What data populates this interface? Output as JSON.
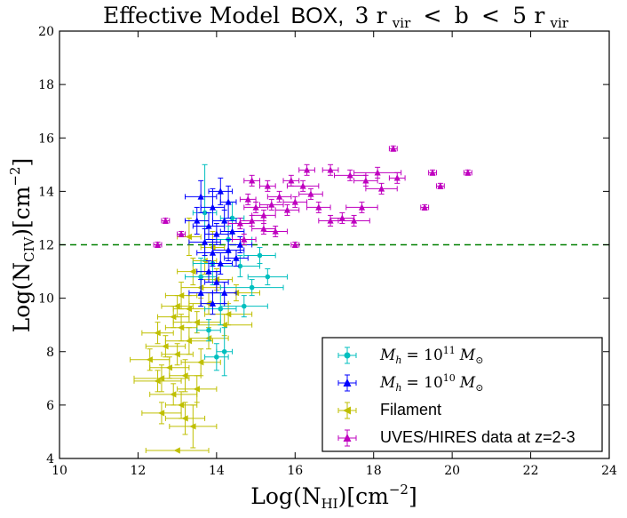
{
  "chart_data": {
    "type": "scatter",
    "title": {
      "prefix": "Effective Model",
      "highlight": "BOX,",
      "condition": "3 r_vir < b < 5 r_vir",
      "num1": "3",
      "r1": "r",
      "sub1": "vir",
      "lt1": "<",
      "b": "b",
      "lt2": "<",
      "num2": "5",
      "r2": "r",
      "sub2": "vir"
    },
    "xlabel": {
      "main": "Log(N",
      "sub": "HI",
      "tail": ")[cm",
      "sup": "−2",
      "close": "]"
    },
    "ylabel": {
      "main": "Log(N",
      "sub": "CIV",
      "tail": ")[cm",
      "sup": "−2",
      "close": "]"
    },
    "xlim": [
      10,
      24
    ],
    "ylim": [
      4,
      20
    ],
    "xticks": [
      10,
      12,
      14,
      16,
      18,
      20,
      22,
      24
    ],
    "yticks": [
      4,
      6,
      8,
      10,
      12,
      14,
      16,
      18,
      20
    ],
    "threshold": 12,
    "colors": {
      "cyan": "#00bfbf",
      "blue": "#0000ff",
      "olive": "#bfbf00",
      "magenta": "#bf00bf",
      "threshold": "#008000"
    },
    "legend": {
      "position": "lower-right",
      "entries": [
        {
          "key": "cyan",
          "label": "M_h = 10^11 M_sun",
          "l_var": "M",
          "l_sub": "h",
          "l_eq": "= 10",
          "l_sup": "11",
          "l_m": "M",
          "l_sun": "⊙"
        },
        {
          "key": "blue",
          "label": "M_h = 10^10 M_sun",
          "l_var": "M",
          "l_sub": "h",
          "l_eq": "= 10",
          "l_sup": "10",
          "l_m": "M",
          "l_sun": "⊙"
        },
        {
          "key": "olive",
          "label": "Filament"
        },
        {
          "key": "magenta",
          "label": "UVES/HIRES data at z=2-3"
        }
      ]
    },
    "series": [
      {
        "name": "M_h = 10^11 M_sun",
        "key": "cyan",
        "marker": "dot",
        "points": [
          {
            "x": 13.7,
            "y": 13.2,
            "ex": 0.3,
            "ey": 1.8
          },
          {
            "x": 13.9,
            "y": 11.3,
            "ex": 0.5,
            "ey": 0.8
          },
          {
            "x": 14.1,
            "y": 9.6,
            "ex": 0.4,
            "ey": 0.6
          },
          {
            "x": 13.8,
            "y": 8.8,
            "ex": 0.3,
            "ey": 0.4
          },
          {
            "x": 14.3,
            "y": 12.2,
            "ex": 0.6,
            "ey": 0.5
          },
          {
            "x": 14.6,
            "y": 11.2,
            "ex": 0.5,
            "ey": 0.4
          },
          {
            "x": 14.9,
            "y": 10.4,
            "ex": 0.8,
            "ey": 0.3
          },
          {
            "x": 15.1,
            "y": 11.6,
            "ex": 0.4,
            "ey": 0.3
          },
          {
            "x": 14.0,
            "y": 7.8,
            "ex": 0.3,
            "ey": 0.5
          },
          {
            "x": 13.6,
            "y": 10.8,
            "ex": 0.4,
            "ey": 0.7
          },
          {
            "x": 14.2,
            "y": 8.0,
            "ex": 0.2,
            "ey": 0.9
          },
          {
            "x": 14.4,
            "y": 13.0,
            "ex": 0.3,
            "ey": 0.6
          },
          {
            "x": 15.3,
            "y": 10.8,
            "ex": 0.5,
            "ey": 0.3
          },
          {
            "x": 14.7,
            "y": 9.7,
            "ex": 0.6,
            "ey": 0.4
          }
        ]
      },
      {
        "name": "M_h = 10^10 M_sun",
        "key": "blue",
        "marker": "triangle",
        "points": [
          {
            "x": 13.6,
            "y": 13.8,
            "ex": 0.4,
            "ey": 0.6
          },
          {
            "x": 13.9,
            "y": 13.4,
            "ex": 0.3,
            "ey": 0.7
          },
          {
            "x": 14.1,
            "y": 14.0,
            "ex": 0.3,
            "ey": 0.5
          },
          {
            "x": 14.3,
            "y": 13.6,
            "ex": 0.2,
            "ey": 0.6
          },
          {
            "x": 13.8,
            "y": 12.7,
            "ex": 0.4,
            "ey": 0.5
          },
          {
            "x": 14.0,
            "y": 12.4,
            "ex": 0.3,
            "ey": 0.4
          },
          {
            "x": 14.2,
            "y": 12.9,
            "ex": 0.3,
            "ey": 0.4
          },
          {
            "x": 13.7,
            "y": 12.1,
            "ex": 0.4,
            "ey": 0.5
          },
          {
            "x": 14.4,
            "y": 12.5,
            "ex": 0.3,
            "ey": 0.3
          },
          {
            "x": 13.9,
            "y": 11.7,
            "ex": 0.4,
            "ey": 0.5
          },
          {
            "x": 14.1,
            "y": 11.3,
            "ex": 0.3,
            "ey": 0.4
          },
          {
            "x": 14.3,
            "y": 11.8,
            "ex": 0.4,
            "ey": 0.4
          },
          {
            "x": 13.8,
            "y": 11.0,
            "ex": 0.3,
            "ey": 0.4
          },
          {
            "x": 14.0,
            "y": 10.6,
            "ex": 0.3,
            "ey": 0.4
          },
          {
            "x": 14.5,
            "y": 11.5,
            "ex": 0.3,
            "ey": 0.3
          },
          {
            "x": 13.6,
            "y": 10.2,
            "ex": 0.3,
            "ey": 0.5
          },
          {
            "x": 14.2,
            "y": 10.2,
            "ex": 0.3,
            "ey": 0.4
          },
          {
            "x": 13.5,
            "y": 12.9,
            "ex": 0.3,
            "ey": 0.5
          },
          {
            "x": 14.6,
            "y": 12.0,
            "ex": 0.3,
            "ey": 0.3
          },
          {
            "x": 13.9,
            "y": 9.8,
            "ex": 0.3,
            "ey": 0.4
          }
        ]
      },
      {
        "name": "Filament",
        "key": "olive",
        "marker": "left-triangle",
        "points": [
          {
            "x": 13.0,
            "y": 4.3,
            "ex": 0.8,
            "ey": 0.0
          },
          {
            "x": 13.4,
            "y": 5.2,
            "ex": 0.6,
            "ey": 0.8
          },
          {
            "x": 12.6,
            "y": 5.7,
            "ex": 0.5,
            "ey": 0.4
          },
          {
            "x": 13.1,
            "y": 6.0,
            "ex": 0.4,
            "ey": 0.5
          },
          {
            "x": 12.9,
            "y": 6.4,
            "ex": 0.6,
            "ey": 0.4
          },
          {
            "x": 13.5,
            "y": 6.6,
            "ex": 0.5,
            "ey": 0.5
          },
          {
            "x": 12.5,
            "y": 6.9,
            "ex": 0.6,
            "ey": 0.4
          },
          {
            "x": 13.2,
            "y": 7.1,
            "ex": 0.4,
            "ey": 0.6
          },
          {
            "x": 12.8,
            "y": 7.4,
            "ex": 0.5,
            "ey": 0.4
          },
          {
            "x": 12.3,
            "y": 7.7,
            "ex": 0.5,
            "ey": 0.4
          },
          {
            "x": 13.6,
            "y": 7.6,
            "ex": 0.5,
            "ey": 0.5
          },
          {
            "x": 13.0,
            "y": 7.9,
            "ex": 0.4,
            "ey": 0.4
          },
          {
            "x": 12.7,
            "y": 8.2,
            "ex": 0.5,
            "ey": 0.4
          },
          {
            "x": 13.3,
            "y": 8.4,
            "ex": 0.6,
            "ey": 0.5
          },
          {
            "x": 12.5,
            "y": 8.7,
            "ex": 0.4,
            "ey": 0.4
          },
          {
            "x": 13.8,
            "y": 8.5,
            "ex": 0.5,
            "ey": 0.4
          },
          {
            "x": 13.1,
            "y": 8.9,
            "ex": 0.4,
            "ey": 0.5
          },
          {
            "x": 12.9,
            "y": 9.3,
            "ex": 0.4,
            "ey": 0.4
          },
          {
            "x": 13.5,
            "y": 9.1,
            "ex": 0.6,
            "ey": 0.4
          },
          {
            "x": 14.2,
            "y": 9.0,
            "ex": 0.7,
            "ey": 0.4
          },
          {
            "x": 13.3,
            "y": 9.6,
            "ex": 0.4,
            "ey": 0.5
          },
          {
            "x": 13.8,
            "y": 9.8,
            "ex": 0.5,
            "ey": 0.4
          },
          {
            "x": 13.1,
            "y": 10.1,
            "ex": 0.4,
            "ey": 0.5
          },
          {
            "x": 13.6,
            "y": 10.4,
            "ex": 0.5,
            "ey": 0.4
          },
          {
            "x": 14.0,
            "y": 10.7,
            "ex": 0.4,
            "ey": 0.4
          },
          {
            "x": 13.4,
            "y": 11.0,
            "ex": 0.4,
            "ey": 0.5
          },
          {
            "x": 13.7,
            "y": 11.4,
            "ex": 0.3,
            "ey": 0.5
          },
          {
            "x": 13.9,
            "y": 11.9,
            "ex": 0.3,
            "ey": 0.6
          },
          {
            "x": 13.3,
            "y": 12.3,
            "ex": 0.3,
            "ey": 0.7
          },
          {
            "x": 14.3,
            "y": 9.4,
            "ex": 0.6,
            "ey": 0.4
          },
          {
            "x": 12.6,
            "y": 7.0,
            "ex": 0.7,
            "ey": 0.5
          },
          {
            "x": 13.2,
            "y": 5.5,
            "ex": 0.5,
            "ey": 0.6
          },
          {
            "x": 13.0,
            "y": 9.7,
            "ex": 0.4,
            "ey": 0.4
          },
          {
            "x": 14.5,
            "y": 10.2,
            "ex": 0.6,
            "ey": 0.3
          }
        ]
      },
      {
        "name": "UVES/HIRES data at z=2-3",
        "key": "magenta",
        "marker": "triangle",
        "points": [
          {
            "x": 12.5,
            "y": 12.0,
            "ex": 0.1,
            "ey": 0.1
          },
          {
            "x": 12.7,
            "y": 12.9,
            "ex": 0.1,
            "ey": 0.1
          },
          {
            "x": 13.1,
            "y": 12.4,
            "ex": 0.1,
            "ey": 0.1
          },
          {
            "x": 14.6,
            "y": 12.8,
            "ex": 0.3,
            "ey": 0.2
          },
          {
            "x": 14.9,
            "y": 12.9,
            "ex": 0.3,
            "ey": 0.2
          },
          {
            "x": 15.0,
            "y": 13.4,
            "ex": 0.3,
            "ey": 0.2
          },
          {
            "x": 15.2,
            "y": 13.1,
            "ex": 0.3,
            "ey": 0.2
          },
          {
            "x": 15.4,
            "y": 13.5,
            "ex": 0.3,
            "ey": 0.2
          },
          {
            "x": 15.6,
            "y": 13.8,
            "ex": 0.3,
            "ey": 0.2
          },
          {
            "x": 15.8,
            "y": 13.3,
            "ex": 0.3,
            "ey": 0.2
          },
          {
            "x": 16.0,
            "y": 13.6,
            "ex": 0.3,
            "ey": 0.2
          },
          {
            "x": 16.2,
            "y": 14.2,
            "ex": 0.4,
            "ey": 0.2
          },
          {
            "x": 16.4,
            "y": 13.9,
            "ex": 0.3,
            "ey": 0.2
          },
          {
            "x": 16.6,
            "y": 13.4,
            "ex": 0.3,
            "ey": 0.2
          },
          {
            "x": 14.9,
            "y": 14.4,
            "ex": 0.2,
            "ey": 0.2
          },
          {
            "x": 15.3,
            "y": 14.2,
            "ex": 0.2,
            "ey": 0.2
          },
          {
            "x": 15.5,
            "y": 12.5,
            "ex": 0.3,
            "ey": 0.2
          },
          {
            "x": 14.7,
            "y": 12.2,
            "ex": 0.3,
            "ey": 0.2
          },
          {
            "x": 16.3,
            "y": 14.8,
            "ex": 0.2,
            "ey": 0.2
          },
          {
            "x": 16.9,
            "y": 14.8,
            "ex": 0.2,
            "ey": 0.2
          },
          {
            "x": 17.4,
            "y": 14.6,
            "ex": 0.4,
            "ey": 0.2
          },
          {
            "x": 17.8,
            "y": 14.4,
            "ex": 0.3,
            "ey": 0.2
          },
          {
            "x": 18.2,
            "y": 14.1,
            "ex": 0.4,
            "ey": 0.2
          },
          {
            "x": 18.1,
            "y": 14.7,
            "ex": 0.6,
            "ey": 0.2
          },
          {
            "x": 18.5,
            "y": 15.6,
            "ex": 0.1,
            "ey": 0.1
          },
          {
            "x": 18.6,
            "y": 14.5,
            "ex": 0.2,
            "ey": 0.2
          },
          {
            "x": 17.7,
            "y": 13.4,
            "ex": 0.4,
            "ey": 0.2
          },
          {
            "x": 17.5,
            "y": 12.9,
            "ex": 0.4,
            "ey": 0.2
          },
          {
            "x": 17.2,
            "y": 13.0,
            "ex": 0.3,
            "ey": 0.2
          },
          {
            "x": 16.9,
            "y": 12.9,
            "ex": 0.3,
            "ey": 0.2
          },
          {
            "x": 19.3,
            "y": 13.4,
            "ex": 0.1,
            "ey": 0.1
          },
          {
            "x": 19.5,
            "y": 14.7,
            "ex": 0.1,
            "ey": 0.1
          },
          {
            "x": 19.7,
            "y": 14.2,
            "ex": 0.1,
            "ey": 0.1
          },
          {
            "x": 20.4,
            "y": 14.7,
            "ex": 0.1,
            "ey": 0.1
          },
          {
            "x": 16.0,
            "y": 12.0,
            "ex": 0.1,
            "ey": 0.1
          },
          {
            "x": 15.2,
            "y": 12.6,
            "ex": 0.3,
            "ey": 0.2
          },
          {
            "x": 14.8,
            "y": 13.7,
            "ex": 0.2,
            "ey": 0.2
          },
          {
            "x": 15.9,
            "y": 14.4,
            "ex": 0.2,
            "ey": 0.2
          }
        ]
      }
    ]
  }
}
